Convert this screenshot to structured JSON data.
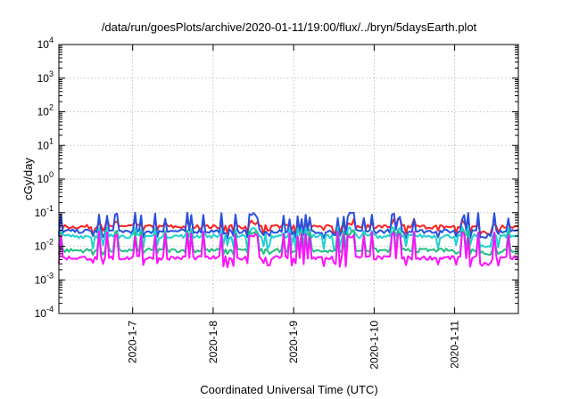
{
  "chart_data": {
    "type": "line",
    "title": "/data/run/goesPlots/archive/2020-01-11/19:00/flux/../bryn/5daysEarth.plot",
    "xlabel": "Coordinated Universal Time (UTC)",
    "ylabel": "cGy/day",
    "yscale": "log",
    "ylim": [
      0.0001,
      10000
    ],
    "y_ticks": [
      {
        "base": "10",
        "exp": "4",
        "value": 10000
      },
      {
        "base": "10",
        "exp": "3",
        "value": 1000
      },
      {
        "base": "10",
        "exp": "2",
        "value": 100
      },
      {
        "base": "10",
        "exp": "1",
        "value": 10
      },
      {
        "base": "10",
        "exp": "0",
        "value": 1
      },
      {
        "base": "10",
        "exp": "-1",
        "value": 0.1
      },
      {
        "base": "10",
        "exp": "-2",
        "value": 0.01
      },
      {
        "base": "10",
        "exp": "-3",
        "value": 0.001
      },
      {
        "base": "10",
        "exp": "-4",
        "value": 0.0001
      }
    ],
    "xlim": [
      "2020-01-06T02:00",
      "2020-01-11T19:00"
    ],
    "x_ticks": [
      "2020-1-7",
      "2020-1-8",
      "2020-1-9",
      "2020-1-10",
      "2020-1-11"
    ],
    "grid": true,
    "series": [
      {
        "color": "#ff2020",
        "baseline": 0.038,
        "spikes": 0.055,
        "dips": 0.026
      },
      {
        "color": "#2850e0",
        "baseline": 0.028,
        "spikes": 0.08,
        "dips": 0.02
      },
      {
        "color": "#20d0d0",
        "baseline": 0.02,
        "spikes": 0.03,
        "dips": 0.0095
      },
      {
        "color": "#20c080",
        "baseline": 0.0075,
        "spikes": 0.025,
        "dips": 0.0065
      },
      {
        "color": "#ff10ff",
        "baseline": 0.0045,
        "spikes": 0.022,
        "dips": 0.0028
      }
    ]
  }
}
